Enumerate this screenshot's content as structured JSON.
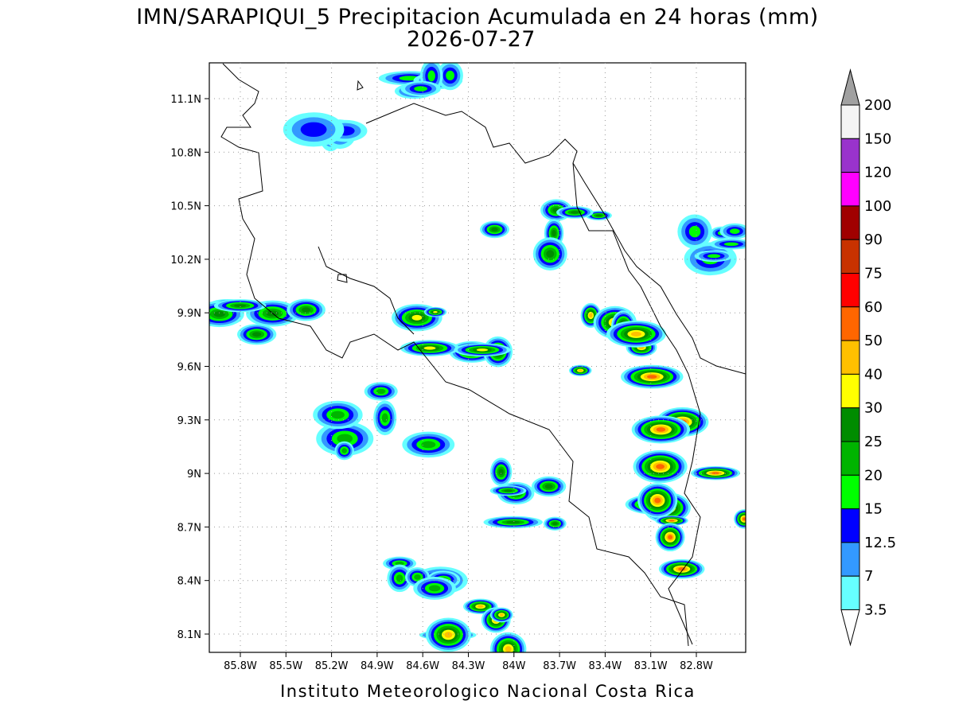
{
  "header": {
    "title": "IMN/SARAPIQUI_5 Precipitacion Acumulada en 24 horas (mm)",
    "date": "2026-07-27"
  },
  "map": {
    "lat_labels": [
      "11.1N",
      "10.8N",
      "10.5N",
      "10.2N",
      "9.9N",
      "9.6N",
      "9.3N",
      "9N",
      "8.7N",
      "8.4N",
      "8.1N"
    ],
    "lon_labels": [
      "85.8W",
      "85.5W",
      "85.2W",
      "84.9W",
      "84.6W",
      "84.3W",
      "84W",
      "83.7W",
      "83.4W",
      "83.1W",
      "82.8W"
    ]
  },
  "colorbar": {
    "levels": [
      200,
      150,
      120,
      100,
      90,
      75,
      60,
      50,
      40,
      30,
      25,
      20,
      15,
      12.5,
      7,
      3.5
    ],
    "colors": [
      "#f4f4f4",
      "#9933cc",
      "#ff00ff",
      "#a00000",
      "#c83200",
      "#ff0000",
      "#ff6600",
      "#ffc000",
      "#ffff00",
      "#008c00",
      "#00b400",
      "#00ff00",
      "#0000ff",
      "#3399ff",
      "#66ffff"
    ],
    "over_color": "#a0a0a0",
    "under_color": "#ffffff"
  },
  "footer": "Instituto Meteorologico Nacional Costa Rica"
}
